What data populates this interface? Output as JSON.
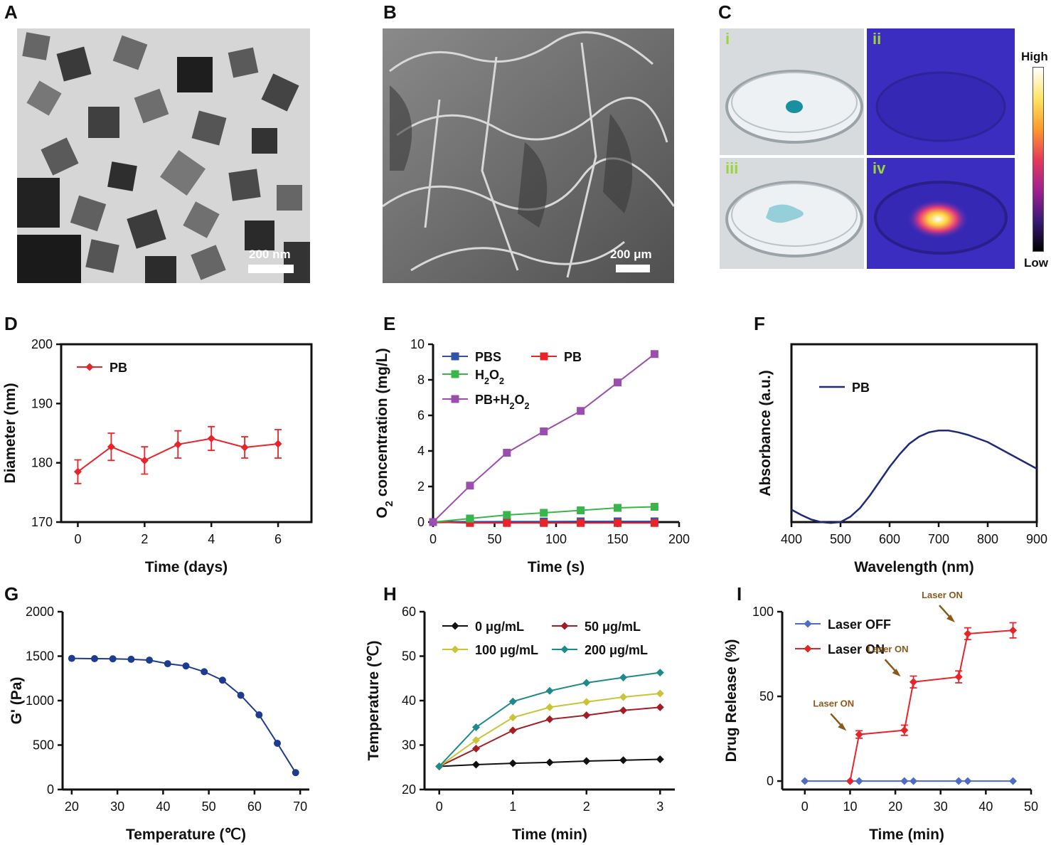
{
  "panels": {
    "A": "A",
    "B": "B",
    "C": "C",
    "D": "D",
    "E": "E",
    "F": "F",
    "G": "G",
    "H": "H",
    "I": "I"
  },
  "images": {
    "a_scale": "200 nm",
    "b_scale": "200 μm",
    "c_sub": [
      "i",
      "ii",
      "iii",
      "iv"
    ],
    "c_high": "High",
    "c_low": "Low",
    "colors": {
      "green_label": "#9bd43a",
      "petri_bg": "#d8dcdf",
      "thermal_bg": "#3a2dbf"
    }
  },
  "chart_data": [
    {
      "id": "D",
      "type": "line",
      "xlabel": "Time (days)",
      "ylabel": "Diameter (nm)",
      "xlim": [
        -0.5,
        7
      ],
      "ylim": [
        170,
        200
      ],
      "xticks": [
        0,
        2,
        4,
        6
      ],
      "yticks": [
        170,
        180,
        190,
        200
      ],
      "series": [
        {
          "name": "PB",
          "color": "#e8242b",
          "marker": "diamond",
          "x": [
            0,
            1,
            2,
            3,
            4,
            5,
            6
          ],
          "y": [
            178.5,
            182.7,
            180.4,
            183.1,
            184.1,
            182.6,
            183.2
          ],
          "err": [
            2.0,
            2.3,
            2.3,
            2.3,
            2.0,
            1.8,
            2.4
          ]
        }
      ],
      "legend": "top-left"
    },
    {
      "id": "E",
      "type": "line",
      "xlabel": "Time (s)",
      "ylabel": "O2 concentration (mg/L)",
      "xlim": [
        0,
        200
      ],
      "ylim": [
        0,
        10
      ],
      "xticks": [
        0,
        50,
        100,
        150,
        200
      ],
      "yticks": [
        0,
        2,
        4,
        6,
        8,
        10
      ],
      "series": [
        {
          "name": "PBS",
          "color": "#3352a7",
          "marker": "square",
          "x": [
            0,
            30,
            60,
            90,
            120,
            150,
            180
          ],
          "y": [
            0,
            0.02,
            0.03,
            0.03,
            0.04,
            0.04,
            0.04
          ]
        },
        {
          "name": "PB",
          "color": "#e8242b",
          "marker": "square",
          "x": [
            0,
            30,
            60,
            90,
            120,
            150,
            180
          ],
          "y": [
            0,
            -0.05,
            -0.05,
            -0.05,
            -0.05,
            -0.05,
            -0.05
          ]
        },
        {
          "name": "H2O2",
          "color": "#3ab54a",
          "marker": "square",
          "x": [
            0,
            30,
            60,
            90,
            120,
            150,
            180
          ],
          "y": [
            0,
            0.2,
            0.4,
            0.52,
            0.66,
            0.8,
            0.86
          ]
        },
        {
          "name": "PB+H2O2",
          "color": "#9b4eb0",
          "marker": "square",
          "x": [
            0,
            30,
            60,
            90,
            120,
            150,
            180
          ],
          "y": [
            0,
            2.05,
            3.9,
            5.1,
            6.25,
            7.85,
            9.45
          ]
        }
      ],
      "legend": "top-left"
    },
    {
      "id": "F",
      "type": "line",
      "xlabel": "Wavelength (nm)",
      "ylabel": "Absorbance (a.u.)",
      "xlim": [
        400,
        900
      ],
      "ylim": [
        0,
        1
      ],
      "xticks": [
        400,
        500,
        600,
        700,
        800,
        900
      ],
      "series": [
        {
          "name": "PB",
          "color": "#1f2a78",
          "x": [
            400,
            420,
            440,
            460,
            480,
            500,
            520,
            540,
            560,
            580,
            600,
            620,
            640,
            660,
            680,
            700,
            720,
            740,
            760,
            780,
            800,
            820,
            840,
            860,
            880,
            900
          ],
          "y": [
            0.07,
            0.04,
            0.015,
            0.0,
            -0.005,
            0.0,
            0.03,
            0.08,
            0.15,
            0.23,
            0.31,
            0.38,
            0.44,
            0.48,
            0.505,
            0.515,
            0.515,
            0.505,
            0.49,
            0.47,
            0.45,
            0.42,
            0.39,
            0.36,
            0.33,
            0.3
          ]
        }
      ],
      "legend": "top-left"
    },
    {
      "id": "G",
      "type": "line",
      "xlabel": "Temperature (℃)",
      "ylabel": "G' (Pa)",
      "xlim": [
        18,
        72
      ],
      "ylim": [
        0,
        2000
      ],
      "xticks": [
        20,
        30,
        40,
        50,
        60,
        70
      ],
      "yticks": [
        0,
        500,
        1000,
        1500,
        2000
      ],
      "series": [
        {
          "name": "G'",
          "color": "#1d3c8f",
          "marker": "circle",
          "x": [
            20,
            25,
            29,
            33,
            37,
            41,
            45,
            49,
            53,
            57,
            61,
            65,
            69
          ],
          "y": [
            1475,
            1472,
            1470,
            1465,
            1455,
            1415,
            1390,
            1325,
            1230,
            1060,
            840,
            520,
            190
          ]
        }
      ]
    },
    {
      "id": "H",
      "type": "line",
      "xlabel": "Time (min)",
      "ylabel": "Temperature (℃)",
      "xlim": [
        -0.2,
        3.2
      ],
      "ylim": [
        20,
        60
      ],
      "xticks": [
        0,
        1,
        2,
        3
      ],
      "yticks": [
        20,
        30,
        40,
        50,
        60
      ],
      "series": [
        {
          "name": "0 μg/mL",
          "color": "#111111",
          "marker": "diamond",
          "x": [
            0,
            0.5,
            1,
            1.5,
            2,
            2.5,
            3
          ],
          "y": [
            25.2,
            25.6,
            25.9,
            26.1,
            26.4,
            26.6,
            26.8
          ]
        },
        {
          "name": "50 μg/mL",
          "color": "#a31d24",
          "marker": "diamond",
          "x": [
            0,
            0.5,
            1,
            1.5,
            2,
            2.5,
            3
          ],
          "y": [
            25.2,
            29.2,
            33.3,
            35.8,
            36.7,
            37.8,
            38.5
          ]
        },
        {
          "name": "100 μg/mL",
          "color": "#c9c43a",
          "marker": "diamond",
          "x": [
            0,
            0.5,
            1,
            1.5,
            2,
            2.5,
            3
          ],
          "y": [
            25.2,
            31.1,
            36.2,
            38.5,
            39.7,
            40.8,
            41.6
          ]
        },
        {
          "name": "200 μg/mL",
          "color": "#1f8a8a",
          "marker": "diamond",
          "x": [
            0,
            0.5,
            1,
            1.5,
            2,
            2.5,
            3
          ],
          "y": [
            25.2,
            34.0,
            39.8,
            42.2,
            44.0,
            45.2,
            46.3
          ]
        }
      ],
      "legend": "top"
    },
    {
      "id": "I",
      "type": "line",
      "xlabel": "Time (min)",
      "ylabel": "Drug Release (%)",
      "xlim": [
        -5,
        50
      ],
      "ylim": [
        -5,
        100
      ],
      "xticks": [
        0,
        10,
        20,
        30,
        40,
        50
      ],
      "yticks": [
        0,
        50,
        100
      ],
      "series": [
        {
          "name": "Laser OFF",
          "color": "#4f6cc4",
          "marker": "diamond",
          "x": [
            0,
            10,
            12,
            22,
            24,
            34,
            36,
            46
          ],
          "y": [
            0,
            0,
            0,
            0,
            0,
            0,
            0,
            0
          ],
          "err": [
            0,
            0,
            0,
            0,
            0,
            0,
            0,
            0
          ]
        },
        {
          "name": "Laser ON",
          "color": "#e8242b",
          "marker": "diamond",
          "x": [
            10,
            12,
            22,
            24,
            34,
            36,
            46
          ],
          "y": [
            0,
            27.5,
            30,
            58.5,
            61.5,
            87,
            89
          ],
          "err": [
            0,
            2.2,
            3,
            3.5,
            3.5,
            3.5,
            4.5
          ]
        }
      ],
      "annotations": [
        {
          "text": "Laser ON",
          "x": 9.5,
          "y": 28
        },
        {
          "text": "Laser ON",
          "x": 21.5,
          "y": 60
        },
        {
          "text": "Laser ON",
          "x": 33.5,
          "y": 92
        }
      ],
      "annotation_color": "#8b5a1a",
      "legend": "top-left"
    }
  ]
}
